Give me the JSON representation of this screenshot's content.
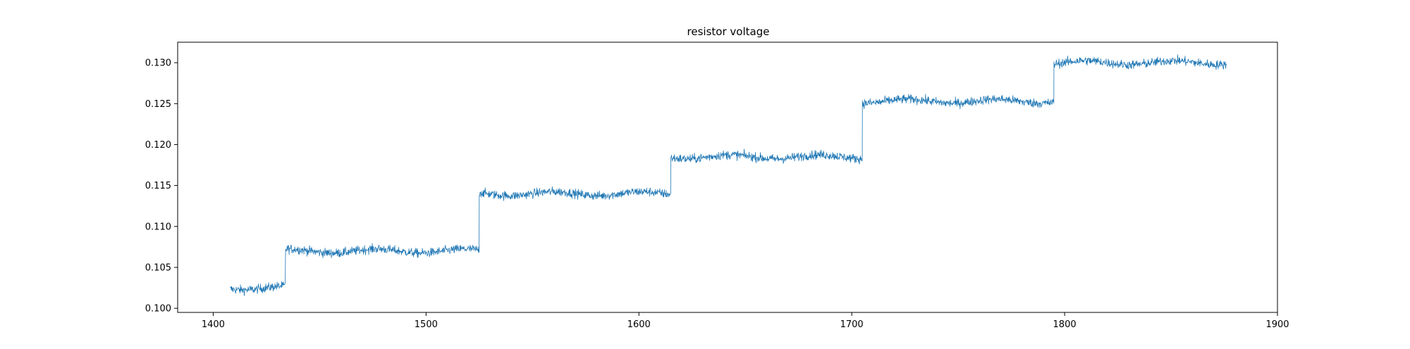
{
  "chart_data": {
    "type": "line",
    "title": "resistor voltage",
    "xlabel": "",
    "ylabel": "",
    "xlim": [
      1383.3,
      1900
    ],
    "ylim": [
      0.0995,
      0.1325
    ],
    "xticks": [
      1400,
      1500,
      1600,
      1700,
      1800,
      1900
    ],
    "yticks": [
      0.1,
      0.105,
      0.11,
      0.115,
      0.12,
      0.125,
      0.13
    ],
    "xtick_labels": [
      "1400",
      "1500",
      "1600",
      "1700",
      "1800",
      "1900"
    ],
    "ytick_labels": [
      "0.100",
      "0.105",
      "0.110",
      "0.115",
      "0.120",
      "0.125",
      "0.130"
    ],
    "grid": false,
    "legend": "none",
    "line_color": "#1f77b4",
    "noise_band": 0.0017,
    "series": [
      {
        "segments": [
          {
            "x_start": 1408,
            "x_end": 1434,
            "level": 0.1025
          },
          {
            "x_start": 1434,
            "x_end": 1525,
            "level": 0.107
          },
          {
            "x_start": 1525,
            "x_end": 1615,
            "level": 0.114
          },
          {
            "x_start": 1615,
            "x_end": 1705,
            "level": 0.1185
          },
          {
            "x_start": 1705,
            "x_end": 1795,
            "level": 0.1253
          },
          {
            "x_start": 1795,
            "x_end": 1876,
            "level": 0.13
          }
        ]
      }
    ]
  }
}
